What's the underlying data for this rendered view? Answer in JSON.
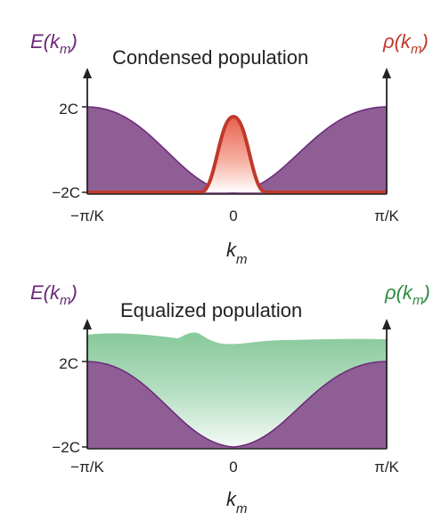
{
  "panel_top": {
    "title": "Condensed population",
    "left_axis_label": "E(k",
    "left_axis_sub": "m",
    "left_axis_close": ")",
    "right_axis_label": "ρ(k",
    "right_axis_sub": "m",
    "right_axis_close": ")",
    "y_tick_top": "2C",
    "y_tick_bottom": "−2C",
    "x_tick_left": "−π/K",
    "x_tick_mid": "0",
    "x_tick_right": "π/K",
    "x_axis_label": "k",
    "x_axis_sub": "m"
  },
  "panel_bottom": {
    "title": "Equalized population",
    "left_axis_label": "E(k",
    "left_axis_sub": "m",
    "left_axis_close": ")",
    "right_axis_label": "ρ(k",
    "right_axis_sub": "m",
    "right_axis_close": ")",
    "y_tick_top": "2C",
    "y_tick_bottom": "−2C",
    "x_tick_left": "−π/K",
    "x_tick_mid": "0",
    "x_tick_right": "π/K",
    "x_axis_label": "k",
    "x_axis_sub": "m"
  },
  "colors": {
    "band_fill": "#8e5e95",
    "band_edge": "#6b2a7a",
    "condensed": "#c0392b",
    "condensed_fill": "#f08a78",
    "equalized": "#7fc79a",
    "axis": "#222222"
  }
}
